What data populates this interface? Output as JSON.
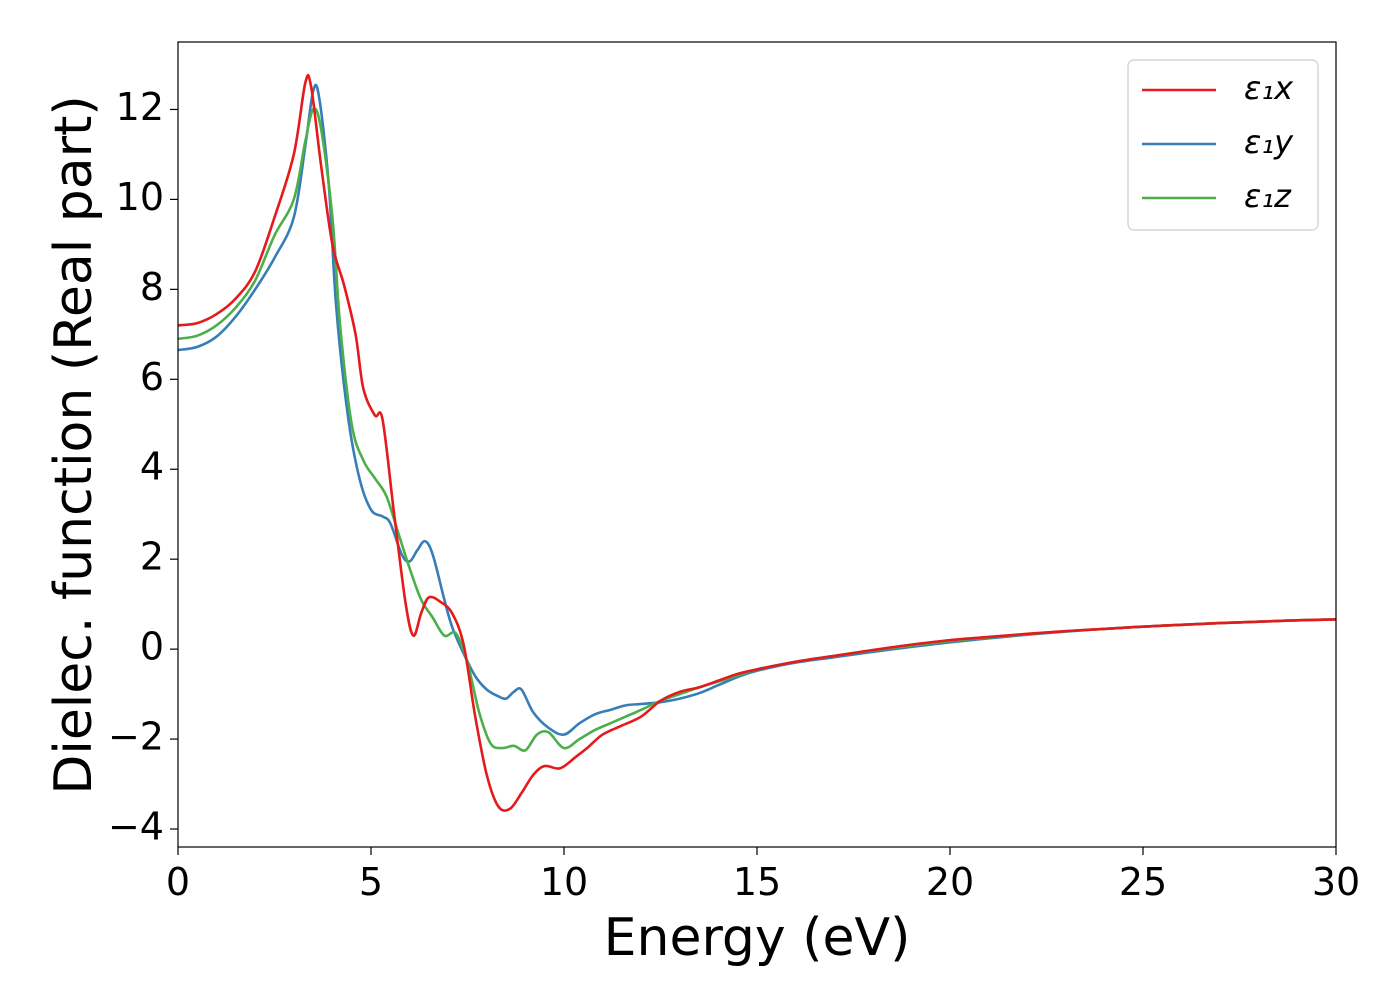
{
  "chart_data": {
    "type": "line",
    "title": "",
    "xlabel": "Energy (eV)",
    "ylabel": "Dielec. function (Real part)",
    "xlim": [
      0,
      30
    ],
    "ylim": [
      -4.4,
      13.5
    ],
    "xticks": [
      0,
      5,
      10,
      15,
      20,
      25,
      30
    ],
    "xtick_labels": [
      "0",
      "5",
      "10",
      "15",
      "20",
      "25",
      "30"
    ],
    "yticks": [
      -4,
      -2,
      0,
      2,
      4,
      6,
      8,
      10,
      12
    ],
    "ytick_labels": [
      "−4",
      "−2",
      "0",
      "2",
      "4",
      "6",
      "8",
      "10",
      "12"
    ],
    "grid": false,
    "legend": "top-right",
    "series": [
      {
        "name": "ε₁x",
        "color": "#e41a1c",
        "points": [
          [
            0,
            7.2
          ],
          [
            0.5,
            7.25
          ],
          [
            1,
            7.45
          ],
          [
            1.5,
            7.8
          ],
          [
            2,
            8.4
          ],
          [
            2.5,
            9.6
          ],
          [
            3,
            11.0
          ],
          [
            3.3,
            12.6
          ],
          [
            3.45,
            12.5
          ],
          [
            3.7,
            10.8
          ],
          [
            4,
            9.0
          ],
          [
            4.3,
            8.1
          ],
          [
            4.6,
            7.0
          ],
          [
            4.8,
            5.8
          ],
          [
            5.1,
            5.2
          ],
          [
            5.3,
            5.1
          ],
          [
            5.6,
            3.0
          ],
          [
            5.9,
            1.0
          ],
          [
            6.1,
            0.3
          ],
          [
            6.3,
            0.8
          ],
          [
            6.5,
            1.15
          ],
          [
            6.8,
            1.05
          ],
          [
            7.1,
            0.8
          ],
          [
            7.4,
            0.1
          ],
          [
            7.7,
            -1.5
          ],
          [
            8,
            -2.8
          ],
          [
            8.3,
            -3.5
          ],
          [
            8.6,
            -3.55
          ],
          [
            8.9,
            -3.2
          ],
          [
            9.2,
            -2.8
          ],
          [
            9.5,
            -2.6
          ],
          [
            9.9,
            -2.65
          ],
          [
            10.3,
            -2.4
          ],
          [
            10.6,
            -2.2
          ],
          [
            11,
            -1.9
          ],
          [
            11.5,
            -1.7
          ],
          [
            12,
            -1.5
          ],
          [
            12.5,
            -1.15
          ],
          [
            13,
            -0.95
          ],
          [
            13.5,
            -0.85
          ],
          [
            14,
            -0.7
          ],
          [
            14.5,
            -0.55
          ],
          [
            15,
            -0.45
          ],
          [
            16,
            -0.28
          ],
          [
            17,
            -0.15
          ],
          [
            18,
            -0.02
          ],
          [
            19,
            0.1
          ],
          [
            20,
            0.2
          ],
          [
            21,
            0.27
          ],
          [
            22,
            0.34
          ],
          [
            23,
            0.4
          ],
          [
            24,
            0.45
          ],
          [
            25,
            0.5
          ],
          [
            26,
            0.54
          ],
          [
            27,
            0.58
          ],
          [
            28,
            0.61
          ],
          [
            29,
            0.64
          ],
          [
            30,
            0.66
          ]
        ]
      },
      {
        "name": "ε₁y",
        "color": "#377eb8",
        "points": [
          [
            0,
            6.65
          ],
          [
            0.5,
            6.72
          ],
          [
            1,
            6.95
          ],
          [
            1.5,
            7.4
          ],
          [
            2,
            8.0
          ],
          [
            2.5,
            8.7
          ],
          [
            3,
            9.6
          ],
          [
            3.3,
            11.2
          ],
          [
            3.5,
            12.4
          ],
          [
            3.65,
            12.3
          ],
          [
            3.9,
            10.4
          ],
          [
            4.1,
            7.6
          ],
          [
            4.4,
            5.2
          ],
          [
            4.7,
            3.8
          ],
          [
            5,
            3.1
          ],
          [
            5.3,
            2.95
          ],
          [
            5.5,
            2.8
          ],
          [
            5.8,
            2.1
          ],
          [
            6,
            1.95
          ],
          [
            6.2,
            2.2
          ],
          [
            6.4,
            2.4
          ],
          [
            6.6,
            2.1
          ],
          [
            6.9,
            1.1
          ],
          [
            7.1,
            0.5
          ],
          [
            7.4,
            -0.1
          ],
          [
            7.7,
            -0.6
          ],
          [
            8,
            -0.9
          ],
          [
            8.3,
            -1.05
          ],
          [
            8.5,
            -1.1
          ],
          [
            8.7,
            -0.95
          ],
          [
            8.9,
            -0.9
          ],
          [
            9.2,
            -1.4
          ],
          [
            9.6,
            -1.75
          ],
          [
            10,
            -1.9
          ],
          [
            10.4,
            -1.65
          ],
          [
            10.8,
            -1.45
          ],
          [
            11.2,
            -1.35
          ],
          [
            11.6,
            -1.25
          ],
          [
            12,
            -1.22
          ],
          [
            12.5,
            -1.18
          ],
          [
            13,
            -1.1
          ],
          [
            13.5,
            -0.98
          ],
          [
            14,
            -0.8
          ],
          [
            14.5,
            -0.62
          ],
          [
            15,
            -0.48
          ],
          [
            16,
            -0.3
          ],
          [
            17,
            -0.18
          ],
          [
            18,
            -0.06
          ],
          [
            19,
            0.05
          ],
          [
            20,
            0.15
          ],
          [
            21,
            0.24
          ],
          [
            22,
            0.32
          ],
          [
            23,
            0.39
          ],
          [
            24,
            0.45
          ],
          [
            25,
            0.5
          ],
          [
            26,
            0.54
          ],
          [
            27,
            0.58
          ],
          [
            28,
            0.61
          ],
          [
            29,
            0.64
          ],
          [
            30,
            0.66
          ]
        ]
      },
      {
        "name": "ε₁z",
        "color": "#4daf4a",
        "points": [
          [
            0,
            6.9
          ],
          [
            0.5,
            6.97
          ],
          [
            1,
            7.2
          ],
          [
            1.5,
            7.6
          ],
          [
            2,
            8.2
          ],
          [
            2.5,
            9.2
          ],
          [
            3,
            10.0
          ],
          [
            3.3,
            11.3
          ],
          [
            3.5,
            12.0
          ],
          [
            3.7,
            11.6
          ],
          [
            4,
            9.6
          ],
          [
            4.2,
            7.2
          ],
          [
            4.5,
            5.0
          ],
          [
            4.8,
            4.2
          ],
          [
            5.1,
            3.8
          ],
          [
            5.4,
            3.4
          ],
          [
            5.7,
            2.6
          ],
          [
            6,
            1.8
          ],
          [
            6.3,
            1.1
          ],
          [
            6.6,
            0.7
          ],
          [
            6.9,
            0.3
          ],
          [
            7.2,
            0.35
          ],
          [
            7.5,
            -0.3
          ],
          [
            7.8,
            -1.4
          ],
          [
            8.1,
            -2.1
          ],
          [
            8.4,
            -2.2
          ],
          [
            8.7,
            -2.15
          ],
          [
            9,
            -2.25
          ],
          [
            9.3,
            -1.9
          ],
          [
            9.6,
            -1.85
          ],
          [
            10,
            -2.2
          ],
          [
            10.4,
            -2.0
          ],
          [
            10.8,
            -1.8
          ],
          [
            11.2,
            -1.65
          ],
          [
            11.6,
            -1.5
          ],
          [
            12,
            -1.35
          ],
          [
            12.5,
            -1.15
          ],
          [
            13,
            -1.0
          ],
          [
            13.5,
            -0.85
          ],
          [
            14,
            -0.72
          ],
          [
            14.5,
            -0.58
          ],
          [
            15,
            -0.45
          ],
          [
            16,
            -0.28
          ],
          [
            17,
            -0.15
          ],
          [
            18,
            -0.03
          ],
          [
            19,
            0.08
          ],
          [
            20,
            0.18
          ],
          [
            21,
            0.26
          ],
          [
            22,
            0.33
          ],
          [
            23,
            0.4
          ],
          [
            24,
            0.45
          ],
          [
            25,
            0.5
          ],
          [
            26,
            0.54
          ],
          [
            27,
            0.58
          ],
          [
            28,
            0.61
          ],
          [
            29,
            0.64
          ],
          [
            30,
            0.66
          ]
        ]
      }
    ]
  }
}
